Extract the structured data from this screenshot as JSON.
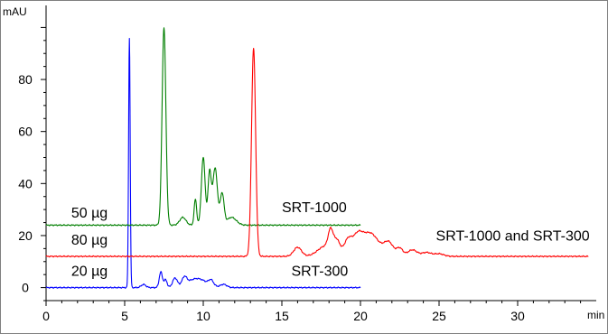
{
  "chart_data": {
    "type": "line",
    "y_unit": "mAU",
    "x_unit": "min",
    "xlim": [
      0,
      35
    ],
    "ylim": [
      -5,
      105
    ],
    "x_ticks": [
      0,
      5,
      10,
      15,
      20,
      25,
      30
    ],
    "x_tick_labels": [
      "0",
      "5",
      "10",
      "15",
      "20",
      "25",
      "30"
    ],
    "y_ticks": [
      0,
      20,
      40,
      60,
      80
    ],
    "y_tick_labels": [
      "0",
      "20",
      "40",
      "60",
      "80"
    ],
    "grid": false,
    "legend": "none",
    "series": [
      {
        "color": "#0000ff",
        "baseline": 0,
        "x_end": 20,
        "peaks": [
          {
            "x": 5.3,
            "h": 96,
            "w": 0.05
          },
          {
            "x": 6.2,
            "h": 1.2,
            "w": 0.15
          },
          {
            "x": 7.3,
            "h": 6,
            "w": 0.1
          },
          {
            "x": 7.6,
            "h": 3,
            "w": 0.1
          },
          {
            "x": 8.2,
            "h": 3.5,
            "w": 0.15
          },
          {
            "x": 8.8,
            "h": 3,
            "w": 0.15
          },
          {
            "x": 9.6,
            "h": 3.5,
            "w": 0.6
          },
          {
            "x": 10.5,
            "h": 2,
            "w": 0.15
          },
          {
            "x": 11.3,
            "h": 1.2,
            "w": 0.2
          }
        ]
      },
      {
        "color": "#007f00",
        "baseline": 24,
        "x_end": 20,
        "peaks": [
          {
            "x": 7.5,
            "h": 76,
            "w": 0.12
          },
          {
            "x": 8.7,
            "h": 3,
            "w": 0.2
          },
          {
            "x": 9.5,
            "h": 10,
            "w": 0.08
          },
          {
            "x": 10.0,
            "h": 26,
            "w": 0.12
          },
          {
            "x": 10.4,
            "h": 20,
            "w": 0.1
          },
          {
            "x": 10.75,
            "h": 22,
            "w": 0.15
          },
          {
            "x": 11.2,
            "h": 12,
            "w": 0.12
          },
          {
            "x": 11.8,
            "h": 3,
            "w": 0.3
          }
        ]
      },
      {
        "color": "#ff0000",
        "baseline": 12,
        "x_end": 34.5,
        "peaks": [
          {
            "x": 13.2,
            "h": 80,
            "w": 0.13
          },
          {
            "x": 16.0,
            "h": 3.5,
            "w": 0.25
          },
          {
            "x": 17.8,
            "h": 4,
            "w": 0.5
          },
          {
            "x": 18.1,
            "h": 7,
            "w": 0.15
          },
          {
            "x": 18.5,
            "h": 5,
            "w": 0.2
          },
          {
            "x": 19.2,
            "h": 6,
            "w": 0.25
          },
          {
            "x": 19.8,
            "h": 6,
            "w": 0.3
          },
          {
            "x": 20.6,
            "h": 9,
            "w": 0.55
          },
          {
            "x": 21.8,
            "h": 5,
            "w": 0.3
          },
          {
            "x": 22.5,
            "h": 3,
            "w": 0.2
          },
          {
            "x": 23.3,
            "h": 2.5,
            "w": 0.3
          },
          {
            "x": 24.2,
            "h": 1.5,
            "w": 0.3
          },
          {
            "x": 25.0,
            "h": 1,
            "w": 0.3
          }
        ]
      }
    ],
    "annotations": [
      {
        "text": "50 µg",
        "x": 1.6,
        "y": 27,
        "anchor": "start"
      },
      {
        "text": "80 µg",
        "x": 1.6,
        "y": 16.5,
        "anchor": "start"
      },
      {
        "text": "20 µg",
        "x": 1.6,
        "y": 4.5,
        "anchor": "start"
      },
      {
        "text": "SRT-1000",
        "x": 15.0,
        "y": 29,
        "anchor": "start"
      },
      {
        "text": "SRT-1000 and SRT-300",
        "x": 24.8,
        "y": 18,
        "anchor": "start"
      },
      {
        "text": "SRT-300",
        "x": 15.6,
        "y": 4.5,
        "anchor": "start"
      }
    ]
  }
}
